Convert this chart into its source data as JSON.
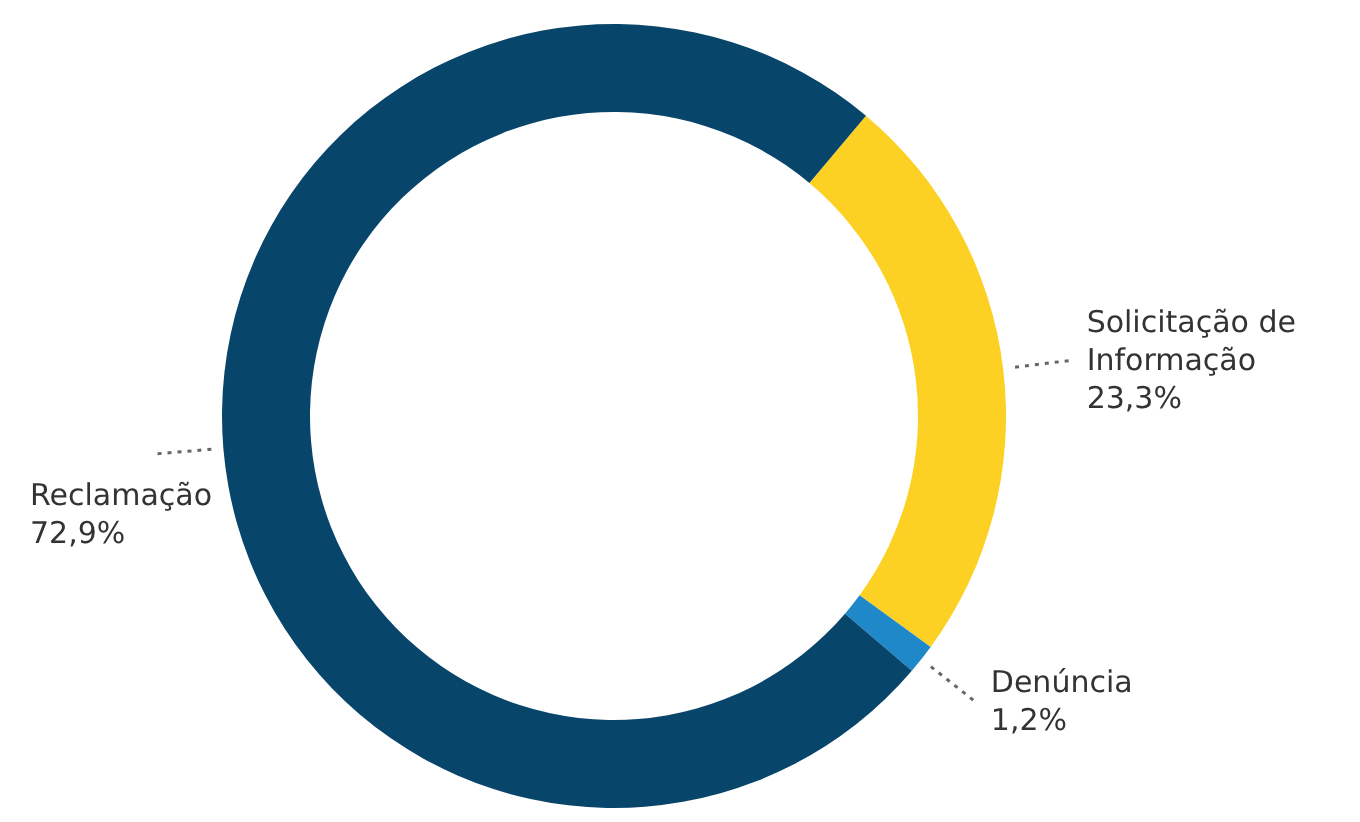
{
  "chart_data": {
    "type": "donut",
    "categories": [
      "Solicitação de Informação",
      "Denúncia",
      "Reclamação"
    ],
    "values": [
      23.3,
      1.2,
      72.9
    ],
    "colors": [
      "#fdd123",
      "#1e88c9",
      "#08456b"
    ],
    "value_labels": [
      "23,3%",
      "1,2%",
      "72,9%"
    ]
  }
}
